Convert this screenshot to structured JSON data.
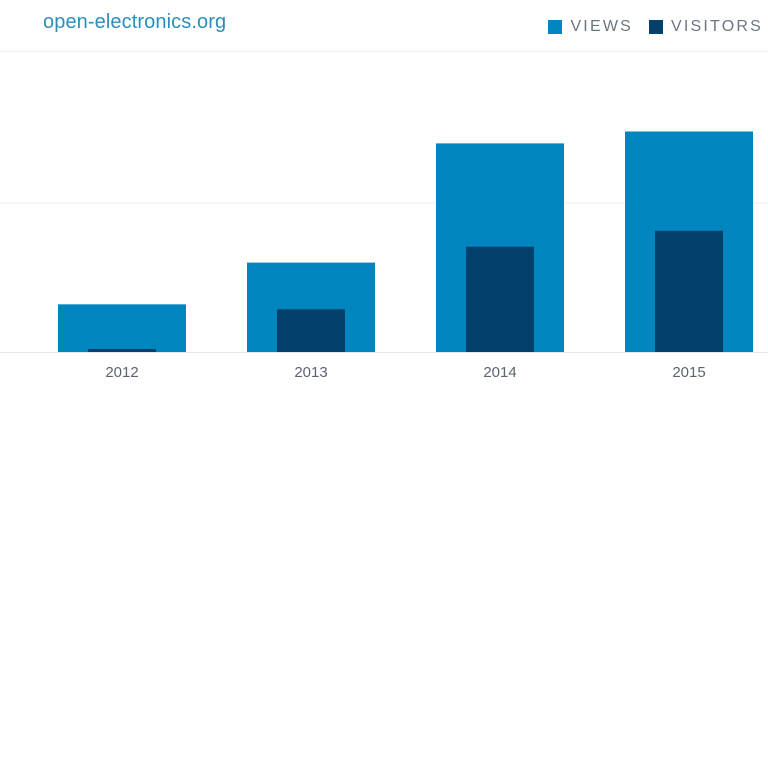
{
  "header": {
    "site_name": "open-electronics.org"
  },
  "legend": [
    {
      "label": "VIEWS",
      "color": "#0085be"
    },
    {
      "label": "VISITORS",
      "color": "#00406b"
    }
  ],
  "chart_data": {
    "type": "bar",
    "categories": [
      "2012",
      "2013",
      "2014",
      "2015"
    ],
    "series": [
      {
        "name": "VIEWS",
        "color": "#0085be",
        "values": [
          48,
          90,
          210,
          222
        ]
      },
      {
        "name": "VISITORS",
        "color": "#00406b",
        "values": [
          3,
          43,
          106,
          122
        ]
      }
    ],
    "ylim": [
      0,
      300
    ],
    "grid": true,
    "legend_position": "top-right"
  }
}
